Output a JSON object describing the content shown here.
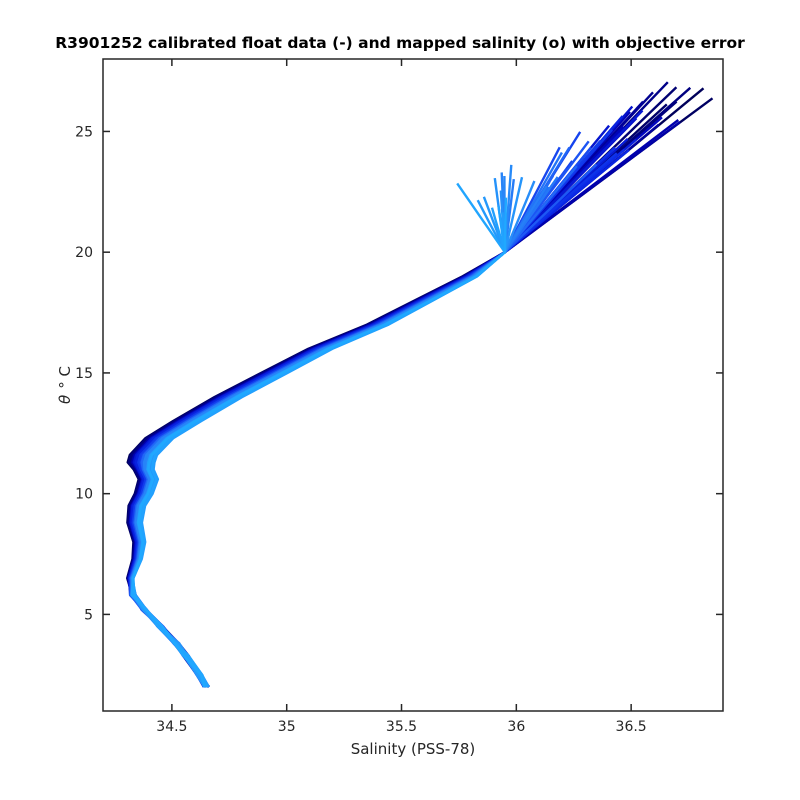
{
  "chart_data": {
    "type": "line",
    "title": "R3901252 calibrated float data (-) and mapped salinity (o) with objective error",
    "xlabel": "Salinity (PSS-78)",
    "ylabel_symbol": "θ",
    "ylabel_unit": "° C",
    "xlim": [
      34.2,
      36.9
    ],
    "ylim": [
      1.0,
      28.0
    ],
    "xticks": [
      34.5,
      35,
      35.5,
      36,
      36.5
    ],
    "yticks": [
      5,
      10,
      15,
      20,
      25
    ],
    "xtick_labels": [
      "34.5",
      "35",
      "35.5",
      "36",
      "36.5"
    ],
    "ytick_labels": [
      "5",
      "10",
      "15",
      "20",
      "25"
    ],
    "grid": false,
    "legend": "none",
    "colormap": [
      "#00005a",
      "#0000b4",
      "#0a28e6",
      "#1e5af5",
      "#2888f8",
      "#20a8ff"
    ],
    "profile_count": 60,
    "typical_profile": {
      "salinity": [
        34.65,
        34.62,
        34.56,
        34.52,
        34.45,
        34.38,
        34.33,
        34.32,
        34.35,
        34.36,
        34.34,
        34.35,
        34.38,
        34.4,
        34.38,
        34.37,
        34.38,
        34.45,
        34.57,
        34.75,
        34.95,
        35.15,
        35.4,
        35.6,
        35.8,
        35.95,
        36.1,
        36.25,
        36.4,
        36.55,
        36.7
      ],
      "theta": [
        2.0,
        2.5,
        3.3,
        3.8,
        4.5,
        5.2,
        5.8,
        6.5,
        7.3,
        8.0,
        8.8,
        9.5,
        10.0,
        10.6,
        11.0,
        11.3,
        11.6,
        12.3,
        13.0,
        14.0,
        15.0,
        16.0,
        17.0,
        18.0,
        19.0,
        20.0,
        21.0,
        22.0,
        23.0,
        24.0,
        25.5
      ]
    }
  }
}
